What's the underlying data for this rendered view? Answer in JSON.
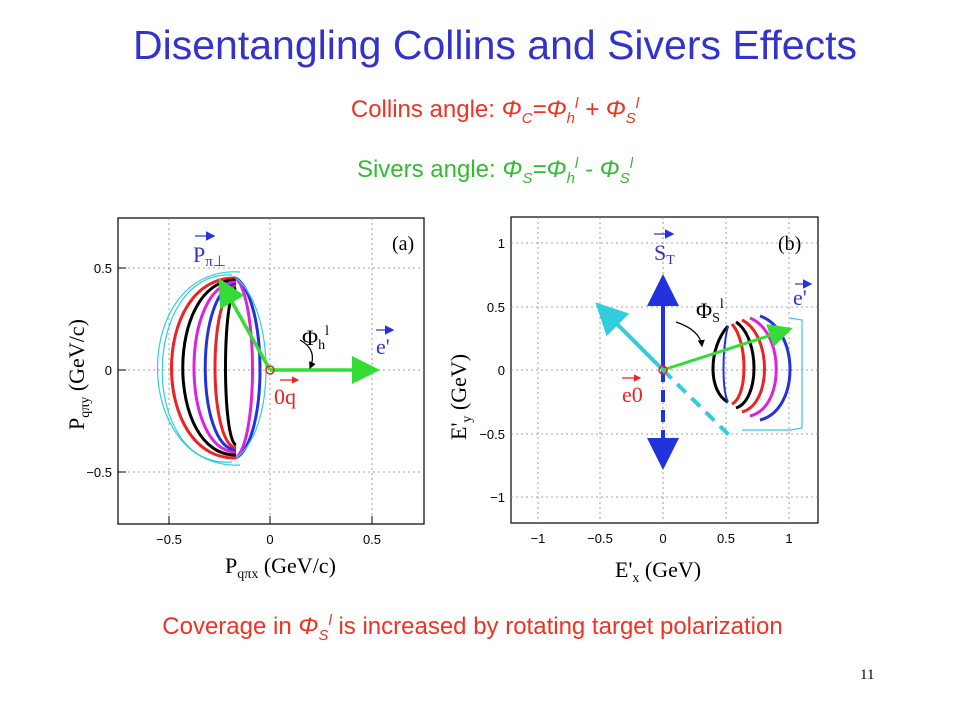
{
  "slide": {
    "title": "Disentangling Collins and Sivers Effects",
    "collins": {
      "label": "Collins angle: ",
      "phi": "Φ",
      "c_sub": "C",
      "eq": "=Φ",
      "h_sub": "h",
      "l_sup1": "l",
      "plus": " + Φ",
      "s_sub": "S",
      "l_sup2": "l"
    },
    "sivers": {
      "label": "Sivers angle: ",
      "phi": "Φ",
      "s_sub": "S",
      "eq": "=Φ",
      "h_sub": "h",
      "l_sup1": "l",
      "minus": " - Φ",
      "s_sub2": "S",
      "l_sup2": "l"
    },
    "coverage": {
      "pre": "Coverage in ",
      "phi": "Φ",
      "s_sub": "S",
      "l_sup": "l",
      "post": " is increased by rotating target  polarization"
    },
    "page_number": "11"
  },
  "plot_a": {
    "panel_label": "(a)",
    "xlabel": "P",
    "xlabel_sub": "qπx",
    "xlabel_unit": " (GeV/c)",
    "ylabel": "P",
    "ylabel_sub": "qπy",
    "ylabel_unit": " (GeV/c)",
    "xticks": [
      "−0.5",
      "0",
      "0.5"
    ],
    "yticks": [
      "0.5",
      "0",
      "−0.5"
    ],
    "vector_p": "P",
    "vector_p_sub": "π⊥",
    "vector_e": "e'",
    "vector_q": "0q",
    "angle_label": "Φ",
    "angle_sub": "h",
    "angle_sup": "l",
    "colors": {
      "cyan": "#33ccdd",
      "red": "#ee2222",
      "black": "#000000",
      "magenta": "#dd22dd",
      "blue": "#2233dd",
      "green": "#33dd33"
    }
  },
  "plot_b": {
    "panel_label": "(b)",
    "xlabel": "E'",
    "xlabel_sub": "x",
    "xlabel_unit": " (GeV)",
    "ylabel": "E'",
    "ylabel_sub": "y",
    "ylabel_unit": " (GeV)",
    "xticks": [
      "−1",
      "−0.5",
      "0",
      "0.5",
      "1"
    ],
    "yticks": [
      "1",
      "0.5",
      "0",
      "−0.5",
      "−1"
    ],
    "vector_s": "S",
    "vector_s_sub": "T",
    "vector_e": "e'",
    "vector_e0": "e0",
    "angle_label": "Φ",
    "angle_sub": "S",
    "angle_sup": "l"
  }
}
